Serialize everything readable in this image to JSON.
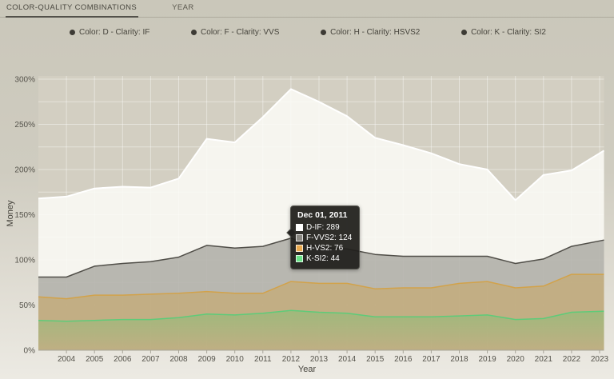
{
  "tabs": [
    {
      "label": "COLOR-QUALITY COMBINATIONS",
      "active": true
    },
    {
      "label": "YEAR",
      "active": false
    }
  ],
  "legend": {
    "items": [
      {
        "label": "Color: D - Clarity: IF"
      },
      {
        "label": "Color: F - Clarity: VVS"
      },
      {
        "label": "Color: H - Clarity: HSVS2"
      },
      {
        "label": "Color: K - Clarity: SI2"
      }
    ],
    "bullet_color": "#3d3b35"
  },
  "tooltip": {
    "date": "Dec 01, 2011",
    "rows": [
      {
        "label": "D-IF",
        "value": 289,
        "text": "D-IF: 289",
        "swatch": "#ffffff"
      },
      {
        "label": "F-VVS2",
        "value": 124,
        "text": "F-VVS2: 124",
        "swatch": "#8b8983"
      },
      {
        "label": "H-VS2",
        "value": 76,
        "text": "H-VS2: 76",
        "swatch": "#e9a94e"
      },
      {
        "label": "K-SI2",
        "value": 44,
        "text": "K-SI2: 44",
        "swatch": "#6ae287"
      }
    ]
  },
  "chart_data": {
    "type": "area",
    "overlapping": true,
    "xlabel": "Year",
    "ylabel": "Money",
    "x": [
      2003,
      2004,
      2005,
      2006,
      2007,
      2008,
      2009,
      2010,
      2011,
      2012,
      2013,
      2014,
      2015,
      2016,
      2017,
      2018,
      2019,
      2020,
      2021,
      2022,
      2023
    ],
    "x_tick_labels": [
      "2004",
      "2005",
      "2006",
      "2007",
      "2008",
      "2009",
      "2010",
      "2011",
      "2012",
      "2013",
      "2014",
      "2015",
      "2016",
      "2017",
      "2018",
      "2019",
      "2020",
      "2021",
      "2022",
      "2023"
    ],
    "ylim": [
      0,
      300
    ],
    "y_ticks": [
      0,
      50,
      100,
      150,
      200,
      250,
      300
    ],
    "y_tick_suffix": "%",
    "y_minor_step": 25,
    "grid": true,
    "tooltip_index": 9,
    "plot_bg": "#d3cfc2",
    "grid_color": "rgba(255,255,255,0.42)",
    "axis_color": "#a8a599",
    "tick_text_color": "#55534b",
    "series": [
      {
        "name": "D-IF",
        "stroke": "#ffffff",
        "stroke_width": 2,
        "fill": "rgba(252,251,247,0.85)",
        "values": [
          168,
          170,
          179,
          181,
          180,
          190,
          234,
          230,
          258,
          289,
          275,
          259,
          235,
          227,
          218,
          206,
          200,
          166,
          194,
          199,
          218
        ]
      },
      {
        "name": "F-VVS2",
        "stroke": "#504e48",
        "stroke_width": 1.5,
        "fill": "rgba(85,82,74,0.38)",
        "values": [
          81,
          81,
          93,
          96,
          98,
          103,
          116,
          113,
          115,
          124,
          114,
          112,
          106,
          104,
          104,
          104,
          104,
          96,
          101,
          115,
          121
        ]
      },
      {
        "name": "H-VS2",
        "stroke": "#d2a24a",
        "stroke_width": 1.5,
        "fill": "rgba(210,160,60,0.38)",
        "values": [
          59,
          57,
          61,
          61,
          62,
          63,
          65,
          63,
          63,
          76,
          74,
          74,
          68,
          69,
          69,
          74,
          76,
          69,
          71,
          84,
          84
        ]
      },
      {
        "name": "K-SI2",
        "stroke": "#5ecb79",
        "stroke_width": 1.5,
        "fill_gradient": {
          "top": "rgba(125,195,115,0.50)",
          "bottom": "rgba(125,195,115,0.04)"
        },
        "values": [
          33,
          32,
          33,
          34,
          34,
          36,
          40,
          39,
          41,
          44,
          42,
          41,
          37,
          37,
          37,
          38,
          39,
          34,
          35,
          42,
          43
        ]
      }
    ]
  }
}
